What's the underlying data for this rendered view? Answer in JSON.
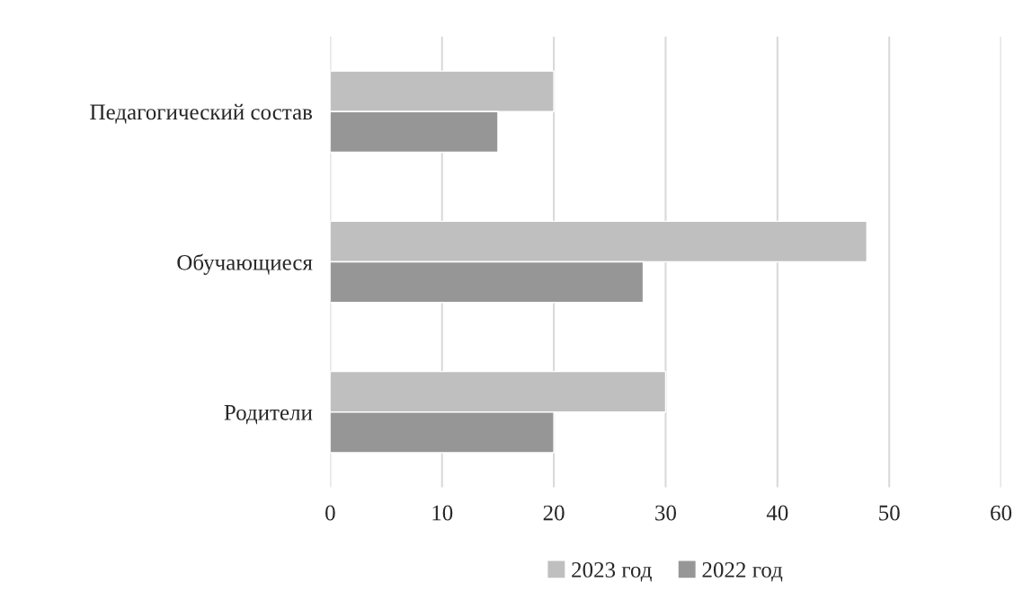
{
  "chart_data": {
    "type": "bar",
    "orientation": "horizontal",
    "categories": [
      "Педагогический состав",
      "Обучающиеся",
      "Родители"
    ],
    "series": [
      {
        "name": "2023 год",
        "color": "#bfbfbf",
        "values": [
          20,
          48,
          30
        ]
      },
      {
        "name": "2022 год",
        "color": "#969696",
        "values": [
          15,
          28,
          20
        ]
      }
    ],
    "xlim": [
      0,
      60
    ],
    "xticks": [
      0,
      10,
      20,
      30,
      40,
      50,
      60
    ],
    "grid": "x",
    "legend": "bottom"
  }
}
